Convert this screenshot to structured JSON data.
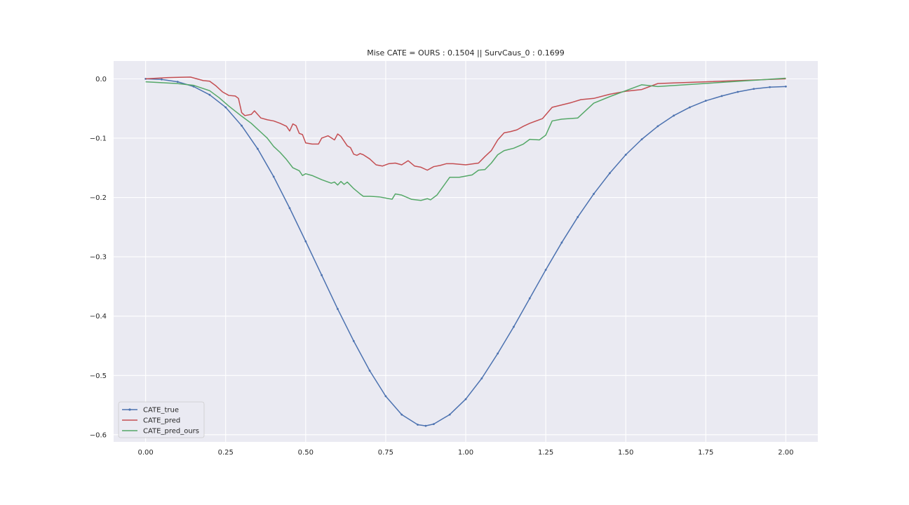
{
  "chart_data": {
    "type": "line",
    "title": "Mise CATE =  OURS : 0.1504 || SurvCaus_0 : 0.1699",
    "xlabel": "",
    "ylabel": "",
    "xlim": [
      -0.1,
      2.1
    ],
    "ylim": [
      -0.612,
      0.03
    ],
    "xticks": [
      0.0,
      0.25,
      0.5,
      0.75,
      1.0,
      1.25,
      1.5,
      1.75,
      2.0
    ],
    "xtick_labels": [
      "0.00",
      "0.25",
      "0.50",
      "0.75",
      "1.00",
      "1.25",
      "1.50",
      "1.75",
      "2.00"
    ],
    "yticks": [
      0.0,
      -0.1,
      -0.2,
      -0.3,
      -0.4,
      -0.5,
      -0.6
    ],
    "ytick_labels": [
      "0.0",
      "−0.1",
      "−0.2",
      "−0.3",
      "−0.4",
      "−0.5",
      "−0.6"
    ],
    "grid": true,
    "legend_position": "bottom-left",
    "colors": {
      "background": "#eaeaf2",
      "grid": "#ffffff",
      "text": "#262626"
    },
    "series": [
      {
        "name": "CATE_true",
        "color": "#4c72b0",
        "marker": "point",
        "x": [
          0.0,
          0.05,
          0.1,
          0.15,
          0.2,
          0.25,
          0.3,
          0.35,
          0.4,
          0.45,
          0.5,
          0.55,
          0.6,
          0.65,
          0.7,
          0.75,
          0.8,
          0.85,
          0.875,
          0.9,
          0.95,
          1.0,
          1.05,
          1.1,
          1.15,
          1.2,
          1.25,
          1.3,
          1.35,
          1.4,
          1.45,
          1.5,
          1.55,
          1.6,
          1.65,
          1.7,
          1.75,
          1.8,
          1.85,
          1.9,
          1.95,
          2.0
        ],
        "y": [
          0.0,
          -0.001,
          -0.005,
          -0.013,
          -0.027,
          -0.048,
          -0.079,
          -0.118,
          -0.165,
          -0.218,
          -0.274,
          -0.331,
          -0.388,
          -0.442,
          -0.492,
          -0.535,
          -0.566,
          -0.583,
          -0.585,
          -0.582,
          -0.566,
          -0.54,
          -0.505,
          -0.463,
          -0.418,
          -0.37,
          -0.322,
          -0.276,
          -0.233,
          -0.194,
          -0.159,
          -0.128,
          -0.102,
          -0.08,
          -0.062,
          -0.048,
          -0.037,
          -0.029,
          -0.022,
          -0.017,
          -0.014,
          -0.013
        ]
      },
      {
        "name": "CATE_pred",
        "color": "#c44e52",
        "marker": "none",
        "x": [
          0.0,
          0.07,
          0.14,
          0.18,
          0.2,
          0.22,
          0.24,
          0.26,
          0.28,
          0.29,
          0.3,
          0.31,
          0.33,
          0.34,
          0.36,
          0.38,
          0.4,
          0.42,
          0.44,
          0.45,
          0.46,
          0.47,
          0.48,
          0.49,
          0.5,
          0.52,
          0.54,
          0.55,
          0.57,
          0.59,
          0.6,
          0.61,
          0.63,
          0.64,
          0.65,
          0.66,
          0.67,
          0.68,
          0.7,
          0.72,
          0.74,
          0.76,
          0.78,
          0.8,
          0.82,
          0.84,
          0.86,
          0.88,
          0.9,
          0.92,
          0.94,
          0.96,
          1.0,
          1.04,
          1.06,
          1.08,
          1.1,
          1.12,
          1.14,
          1.16,
          1.18,
          1.2,
          1.24,
          1.27,
          1.3,
          1.33,
          1.36,
          1.4,
          1.45,
          1.5,
          1.55,
          1.6,
          1.65,
          2.0
        ],
        "y": [
          0.0,
          0.002,
          0.003,
          -0.003,
          -0.004,
          -0.012,
          -0.022,
          -0.028,
          -0.029,
          -0.033,
          -0.057,
          -0.062,
          -0.06,
          -0.054,
          -0.066,
          -0.069,
          -0.071,
          -0.075,
          -0.08,
          -0.088,
          -0.076,
          -0.079,
          -0.092,
          -0.094,
          -0.108,
          -0.11,
          -0.11,
          -0.1,
          -0.096,
          -0.103,
          -0.093,
          -0.097,
          -0.113,
          -0.116,
          -0.127,
          -0.129,
          -0.126,
          -0.128,
          -0.135,
          -0.145,
          -0.147,
          -0.143,
          -0.142,
          -0.145,
          -0.138,
          -0.147,
          -0.149,
          -0.154,
          -0.148,
          -0.146,
          -0.143,
          -0.143,
          -0.145,
          -0.142,
          -0.131,
          -0.121,
          -0.103,
          -0.091,
          -0.089,
          -0.086,
          -0.08,
          -0.075,
          -0.067,
          -0.048,
          -0.044,
          -0.04,
          -0.035,
          -0.033,
          -0.026,
          -0.021,
          -0.018,
          -0.008,
          -0.007,
          0.0
        ]
      },
      {
        "name": "CATE_pred_ours",
        "color": "#55a868",
        "marker": "none",
        "x": [
          0.0,
          0.1,
          0.15,
          0.2,
          0.23,
          0.26,
          0.3,
          0.33,
          0.36,
          0.38,
          0.4,
          0.42,
          0.44,
          0.46,
          0.48,
          0.49,
          0.5,
          0.52,
          0.55,
          0.58,
          0.59,
          0.6,
          0.61,
          0.62,
          0.63,
          0.65,
          0.67,
          0.68,
          0.7,
          0.73,
          0.76,
          0.77,
          0.78,
          0.8,
          0.83,
          0.86,
          0.88,
          0.89,
          0.91,
          0.95,
          0.98,
          1.02,
          1.04,
          1.06,
          1.08,
          1.1,
          1.12,
          1.15,
          1.18,
          1.2,
          1.23,
          1.25,
          1.27,
          1.3,
          1.35,
          1.4,
          1.45,
          1.5,
          1.55,
          1.6,
          2.0
        ],
        "y": [
          -0.005,
          -0.008,
          -0.011,
          -0.02,
          -0.032,
          -0.046,
          -0.063,
          -0.075,
          -0.09,
          -0.1,
          -0.114,
          -0.124,
          -0.136,
          -0.15,
          -0.155,
          -0.163,
          -0.16,
          -0.163,
          -0.17,
          -0.176,
          -0.174,
          -0.179,
          -0.173,
          -0.178,
          -0.174,
          -0.185,
          -0.194,
          -0.198,
          -0.198,
          -0.199,
          -0.202,
          -0.203,
          -0.194,
          -0.196,
          -0.203,
          -0.205,
          -0.202,
          -0.204,
          -0.196,
          -0.166,
          -0.166,
          -0.162,
          -0.154,
          -0.153,
          -0.142,
          -0.128,
          -0.121,
          -0.117,
          -0.11,
          -0.102,
          -0.103,
          -0.095,
          -0.071,
          -0.068,
          -0.066,
          -0.041,
          -0.03,
          -0.02,
          -0.01,
          -0.013,
          0.001
        ]
      }
    ]
  }
}
